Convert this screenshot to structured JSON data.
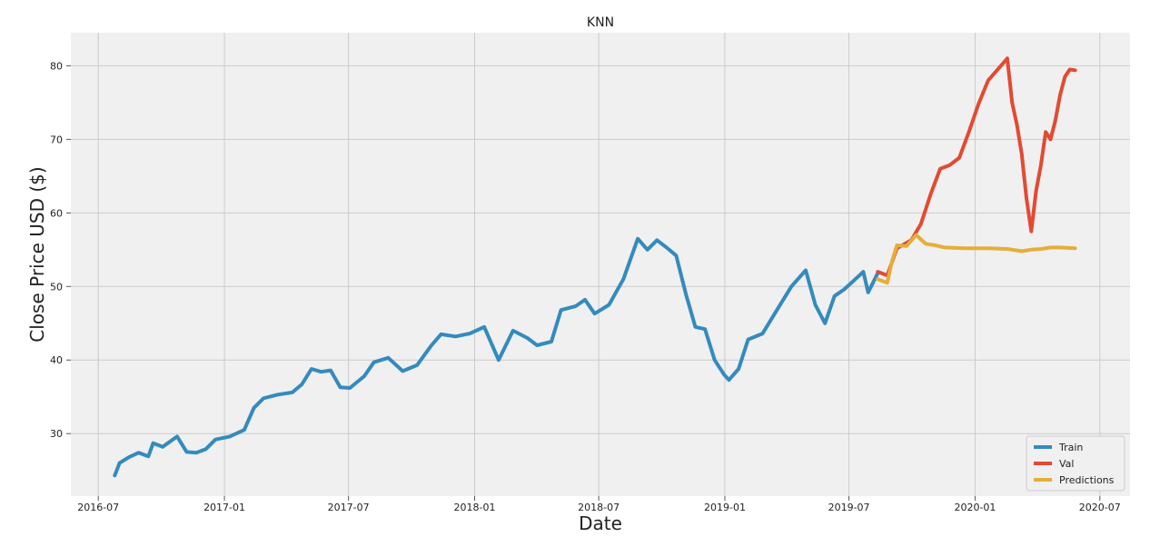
{
  "chart_data": {
    "type": "line",
    "title": "KNN",
    "xlabel": "Date",
    "ylabel": "Close Price USD ($)",
    "x_ticks": [
      "2016-07",
      "2017-01",
      "2017-07",
      "2018-01",
      "2018-07",
      "2019-01",
      "2019-07",
      "2020-01",
      "2020-07"
    ],
    "y_ticks": [
      30,
      40,
      50,
      60,
      70,
      80
    ],
    "xlim": [
      "2016-05-22",
      "2020-08-14"
    ],
    "ylim": [
      21.5,
      84.5
    ],
    "grid": true,
    "legend_position": "bottom-right",
    "series": [
      {
        "name": "Train",
        "color": "#348ABD",
        "points": [
          [
            "2016-07-25",
            24.3
          ],
          [
            "2016-08-01",
            26.0
          ],
          [
            "2016-08-15",
            26.8
          ],
          [
            "2016-08-29",
            27.4
          ],
          [
            "2016-09-12",
            26.9
          ],
          [
            "2016-09-19",
            28.7
          ],
          [
            "2016-10-03",
            28.2
          ],
          [
            "2016-10-24",
            29.6
          ],
          [
            "2016-11-07",
            27.5
          ],
          [
            "2016-11-21",
            27.4
          ],
          [
            "2016-12-05",
            27.9
          ],
          [
            "2016-12-19",
            29.2
          ],
          [
            "2017-01-09",
            29.6
          ],
          [
            "2017-01-30",
            30.5
          ],
          [
            "2017-02-13",
            33.5
          ],
          [
            "2017-02-27",
            34.8
          ],
          [
            "2017-03-20",
            35.3
          ],
          [
            "2017-04-10",
            35.6
          ],
          [
            "2017-04-24",
            36.7
          ],
          [
            "2017-05-08",
            38.8
          ],
          [
            "2017-05-22",
            38.4
          ],
          [
            "2017-06-05",
            38.6
          ],
          [
            "2017-06-19",
            36.3
          ],
          [
            "2017-07-03",
            36.2
          ],
          [
            "2017-07-24",
            37.8
          ],
          [
            "2017-08-07",
            39.7
          ],
          [
            "2017-08-28",
            40.3
          ],
          [
            "2017-09-18",
            38.5
          ],
          [
            "2017-10-09",
            39.3
          ],
          [
            "2017-10-30",
            42.0
          ],
          [
            "2017-11-13",
            43.5
          ],
          [
            "2017-12-04",
            43.2
          ],
          [
            "2017-12-25",
            43.6
          ],
          [
            "2018-01-15",
            44.5
          ],
          [
            "2018-02-05",
            40.0
          ],
          [
            "2018-02-26",
            44.0
          ],
          [
            "2018-03-19",
            43.0
          ],
          [
            "2018-04-02",
            42.0
          ],
          [
            "2018-04-23",
            42.5
          ],
          [
            "2018-05-07",
            46.8
          ],
          [
            "2018-05-28",
            47.3
          ],
          [
            "2018-06-11",
            48.2
          ],
          [
            "2018-06-25",
            46.3
          ],
          [
            "2018-07-16",
            47.5
          ],
          [
            "2018-08-06",
            51.0
          ],
          [
            "2018-08-27",
            56.5
          ],
          [
            "2018-09-10",
            55.0
          ],
          [
            "2018-09-24",
            56.3
          ],
          [
            "2018-10-08",
            55.3
          ],
          [
            "2018-10-22",
            54.2
          ],
          [
            "2018-11-05",
            49.0
          ],
          [
            "2018-11-19",
            44.5
          ],
          [
            "2018-12-03",
            44.2
          ],
          [
            "2018-12-17",
            40.0
          ],
          [
            "2018-12-31",
            38.0
          ],
          [
            "2019-01-07",
            37.3
          ],
          [
            "2019-01-21",
            38.8
          ],
          [
            "2019-02-04",
            42.8
          ],
          [
            "2019-02-25",
            43.6
          ],
          [
            "2019-03-18",
            46.8
          ],
          [
            "2019-04-08",
            50.0
          ],
          [
            "2019-04-29",
            52.2
          ],
          [
            "2019-05-13",
            47.5
          ],
          [
            "2019-05-27",
            45.0
          ],
          [
            "2019-06-10",
            48.7
          ],
          [
            "2019-06-24",
            49.6
          ],
          [
            "2019-07-08",
            50.8
          ],
          [
            "2019-07-22",
            52.0
          ],
          [
            "2019-07-29",
            49.2
          ],
          [
            "2019-08-12",
            51.8
          ]
        ]
      },
      {
        "name": "Val",
        "color": "#E24A33",
        "points": [
          [
            "2019-08-12",
            52.0
          ],
          [
            "2019-08-26",
            51.5
          ],
          [
            "2019-09-09",
            55.2
          ],
          [
            "2019-09-30",
            56.3
          ],
          [
            "2019-10-14",
            58.5
          ],
          [
            "2019-10-28",
            62.5
          ],
          [
            "2019-11-11",
            66.0
          ],
          [
            "2019-11-25",
            66.5
          ],
          [
            "2019-12-09",
            67.5
          ],
          [
            "2019-12-23",
            71.0
          ],
          [
            "2020-01-06",
            74.8
          ],
          [
            "2020-01-20",
            78.0
          ],
          [
            "2020-02-03",
            79.5
          ],
          [
            "2020-02-17",
            81.0
          ],
          [
            "2020-02-24",
            75.0
          ],
          [
            "2020-03-02",
            72.0
          ],
          [
            "2020-03-09",
            68.0
          ],
          [
            "2020-03-16",
            62.0
          ],
          [
            "2020-03-23",
            57.5
          ],
          [
            "2020-03-30",
            63.0
          ],
          [
            "2020-04-06",
            66.5
          ],
          [
            "2020-04-13",
            71.0
          ],
          [
            "2020-04-20",
            70.0
          ],
          [
            "2020-04-27",
            72.5
          ],
          [
            "2020-05-04",
            76.0
          ],
          [
            "2020-05-11",
            78.5
          ],
          [
            "2020-05-18",
            79.5
          ],
          [
            "2020-05-26",
            79.4
          ]
        ]
      },
      {
        "name": "Predictions",
        "color": "#E5AE38",
        "points": [
          [
            "2019-08-12",
            51.0
          ],
          [
            "2019-08-26",
            50.5
          ],
          [
            "2019-09-02",
            53.5
          ],
          [
            "2019-09-09",
            55.6
          ],
          [
            "2019-09-23",
            55.5
          ],
          [
            "2019-10-07",
            57.0
          ],
          [
            "2019-10-21",
            55.8
          ],
          [
            "2019-11-04",
            55.6
          ],
          [
            "2019-11-18",
            55.3
          ],
          [
            "2019-12-16",
            55.2
          ],
          [
            "2020-01-20",
            55.2
          ],
          [
            "2020-02-17",
            55.1
          ],
          [
            "2020-03-09",
            54.8
          ],
          [
            "2020-03-23",
            55.0
          ],
          [
            "2020-04-06",
            55.1
          ],
          [
            "2020-04-20",
            55.3
          ],
          [
            "2020-05-04",
            55.3
          ],
          [
            "2020-05-26",
            55.2
          ]
        ]
      }
    ]
  }
}
